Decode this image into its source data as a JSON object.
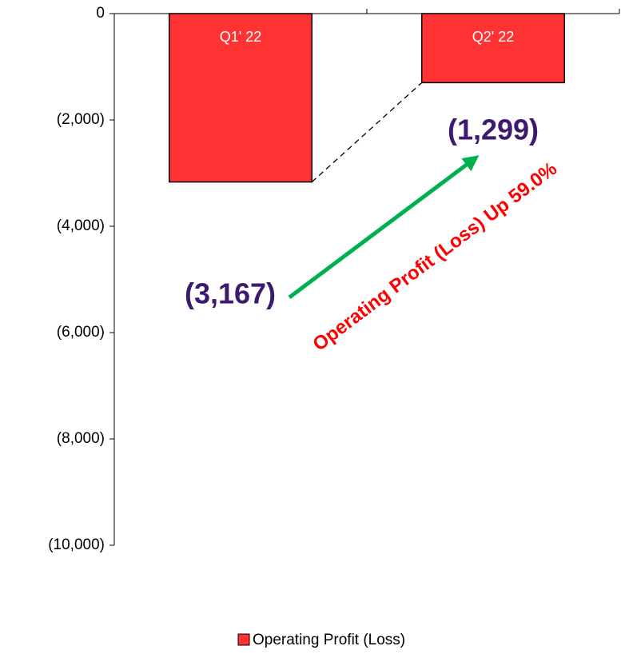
{
  "chart_data": {
    "type": "bar",
    "categories": [
      "Q1' 22",
      "Q2' 22"
    ],
    "series": [
      {
        "name": "Operating Profit (Loss)",
        "color": "#ff3333",
        "values": [
          -3167,
          -1299
        ],
        "value_labels": [
          "(3,167)",
          "(1,299)"
        ]
      }
    ],
    "ylim": [
      -10000,
      0
    ],
    "yticks": [
      {
        "value": -10000,
        "label": "(10,000)"
      },
      {
        "value": -8000,
        "label": "(8,000)"
      },
      {
        "value": -6000,
        "label": "(6,000)"
      },
      {
        "value": -4000,
        "label": "(4,000)"
      },
      {
        "value": -2000,
        "label": "(2,000)"
      },
      0
    ],
    "annotation": "Operating Profit (Loss) Up 59.0%",
    "legend": "bottom"
  }
}
